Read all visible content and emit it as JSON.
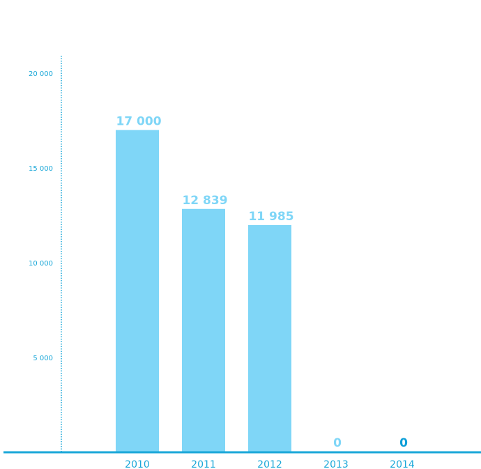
{
  "chart_data": {
    "type": "bar",
    "categories": [
      "2010",
      "2011",
      "2012",
      "2013",
      "2014"
    ],
    "values": [
      17000,
      12839,
      11985,
      0,
      0
    ],
    "value_labels": [
      "17 000",
      "12 839",
      "11 985",
      "0",
      "0"
    ],
    "y_ticks": [
      5000,
      10000,
      15000,
      20000
    ],
    "y_tick_labels": [
      "5 000",
      "10 000",
      "15 000",
      "20 000"
    ],
    "ylim": [
      0,
      20000
    ],
    "grid": false,
    "title": "",
    "xlabel": "",
    "ylabel": "",
    "colors": {
      "bar": "#7fd6f7",
      "axis": "#1aa7d8",
      "tick_label": "#1aa7d8",
      "value_label": "#7fd6f7",
      "value_label_emphasis": "#0d9fd8"
    }
  }
}
